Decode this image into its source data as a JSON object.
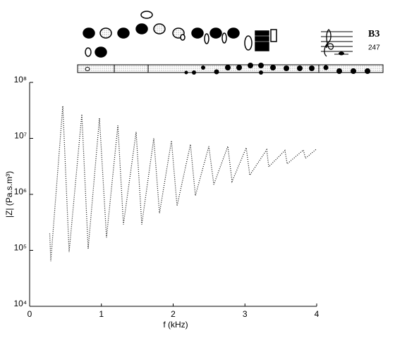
{
  "chart_data": {
    "type": "line",
    "xlabel": "f (kHz)",
    "ylabel": "|Z| (Pa.s.m³)",
    "annotations": [
      "B3",
      "247"
    ],
    "x": [
      0.28,
      0.295,
      0.462,
      0.55,
      0.727,
      0.816,
      0.973,
      1.071,
      1.229,
      1.307,
      1.484,
      1.563,
      1.73,
      1.809,
      1.976,
      2.054,
      2.241,
      2.31,
      2.497,
      2.566,
      2.762,
      2.821,
      3.018,
      3.067,
      3.303,
      3.332,
      3.558,
      3.588,
      3.814,
      3.843,
      4.0
    ],
    "values": [
      200000,
      64000,
      38000000,
      93000,
      27000000,
      107000,
      23000000,
      170000,
      17000000,
      290000,
      13000000,
      290000,
      10000000,
      460000,
      9100000,
      620000,
      7800000,
      950000,
      7200000,
      1500000,
      7200000,
      1700000,
      6800000,
      2200000,
      6300000,
      3100000,
      6100000,
      3500000,
      6200000,
      4400000,
      6500000
    ],
    "color": "#000000",
    "log_y": true,
    "xlim": [
      0,
      4
    ],
    "xticks": [
      0,
      1,
      2,
      3,
      4
    ],
    "ylim": [
      10000,
      100000000
    ],
    "yticks": [
      {
        "value": 10000,
        "label": "10⁴"
      },
      {
        "value": 100000,
        "label": "10⁵"
      },
      {
        "value": 1000000,
        "label": "10⁶"
      },
      {
        "value": 10000000,
        "label": "10⁷"
      },
      {
        "value": 100000000,
        "label": "10⁸"
      }
    ]
  }
}
